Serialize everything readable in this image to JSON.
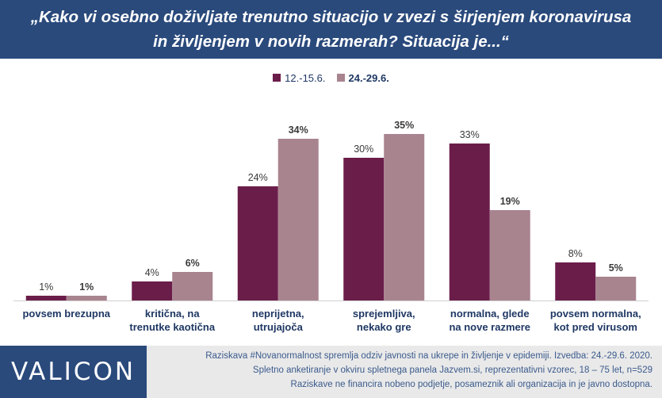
{
  "title": "„Kako vi osebno doživljate trenutno situacijo v zvezi s širjenjem koronavirusa in življenjem v novih razmerah? Situacija je...“",
  "legend": [
    {
      "label": "12.-15.6.",
      "color": "#6b1d4a",
      "bold": false
    },
    {
      "label": "24.-29.6.",
      "color": "#a8848f",
      "bold": true
    }
  ],
  "chart_data": {
    "type": "bar",
    "title": "„Kako vi osebno doživljate trenutno situacijo v zvezi s širjenjem koronavirusa in življenjem v novih razmerah? Situacija je...“",
    "categories": [
      [
        "povsem brezupna"
      ],
      [
        "kritična, na",
        "trenutke kaotična"
      ],
      [
        "neprijetna,",
        "utrujajoča"
      ],
      [
        "sprejemljiva,",
        "nekako gre"
      ],
      [
        "normalna, glede",
        "na nove razmere"
      ],
      [
        "povsem normalna,",
        "kot pred virusom"
      ]
    ],
    "series": [
      {
        "name": "12.-15.6.",
        "color": "#6b1d4a",
        "values": [
          1,
          4,
          24,
          30,
          33,
          8
        ],
        "labels": [
          "1%",
          "4%",
          "24%",
          "30%",
          "33%",
          "8%"
        ]
      },
      {
        "name": "24.-29.6.",
        "color": "#a8848f",
        "values": [
          1,
          6,
          34,
          35,
          19,
          5
        ],
        "labels": [
          "1%",
          "6%",
          "34%",
          "35%",
          "19%",
          "5%"
        ]
      }
    ],
    "ylim": [
      0,
      40
    ],
    "grid": false,
    "legend_position": "top"
  },
  "logo": "VALICON",
  "footnote": [
    "Raziskava #Novanormalnost spremlja odziv javnosti na ukrepe in življenje v epidemiji. Izvedba: 24.-29.6. 2020.",
    "Spletno anketiranje v okviru spletnega panela Jazvem.si, reprezentativni vzorec, 18 – 75 let, n=529",
    "Raziskave ne financira nobeno podjetje, posameznik ali organizacija in je javno dostopna."
  ]
}
